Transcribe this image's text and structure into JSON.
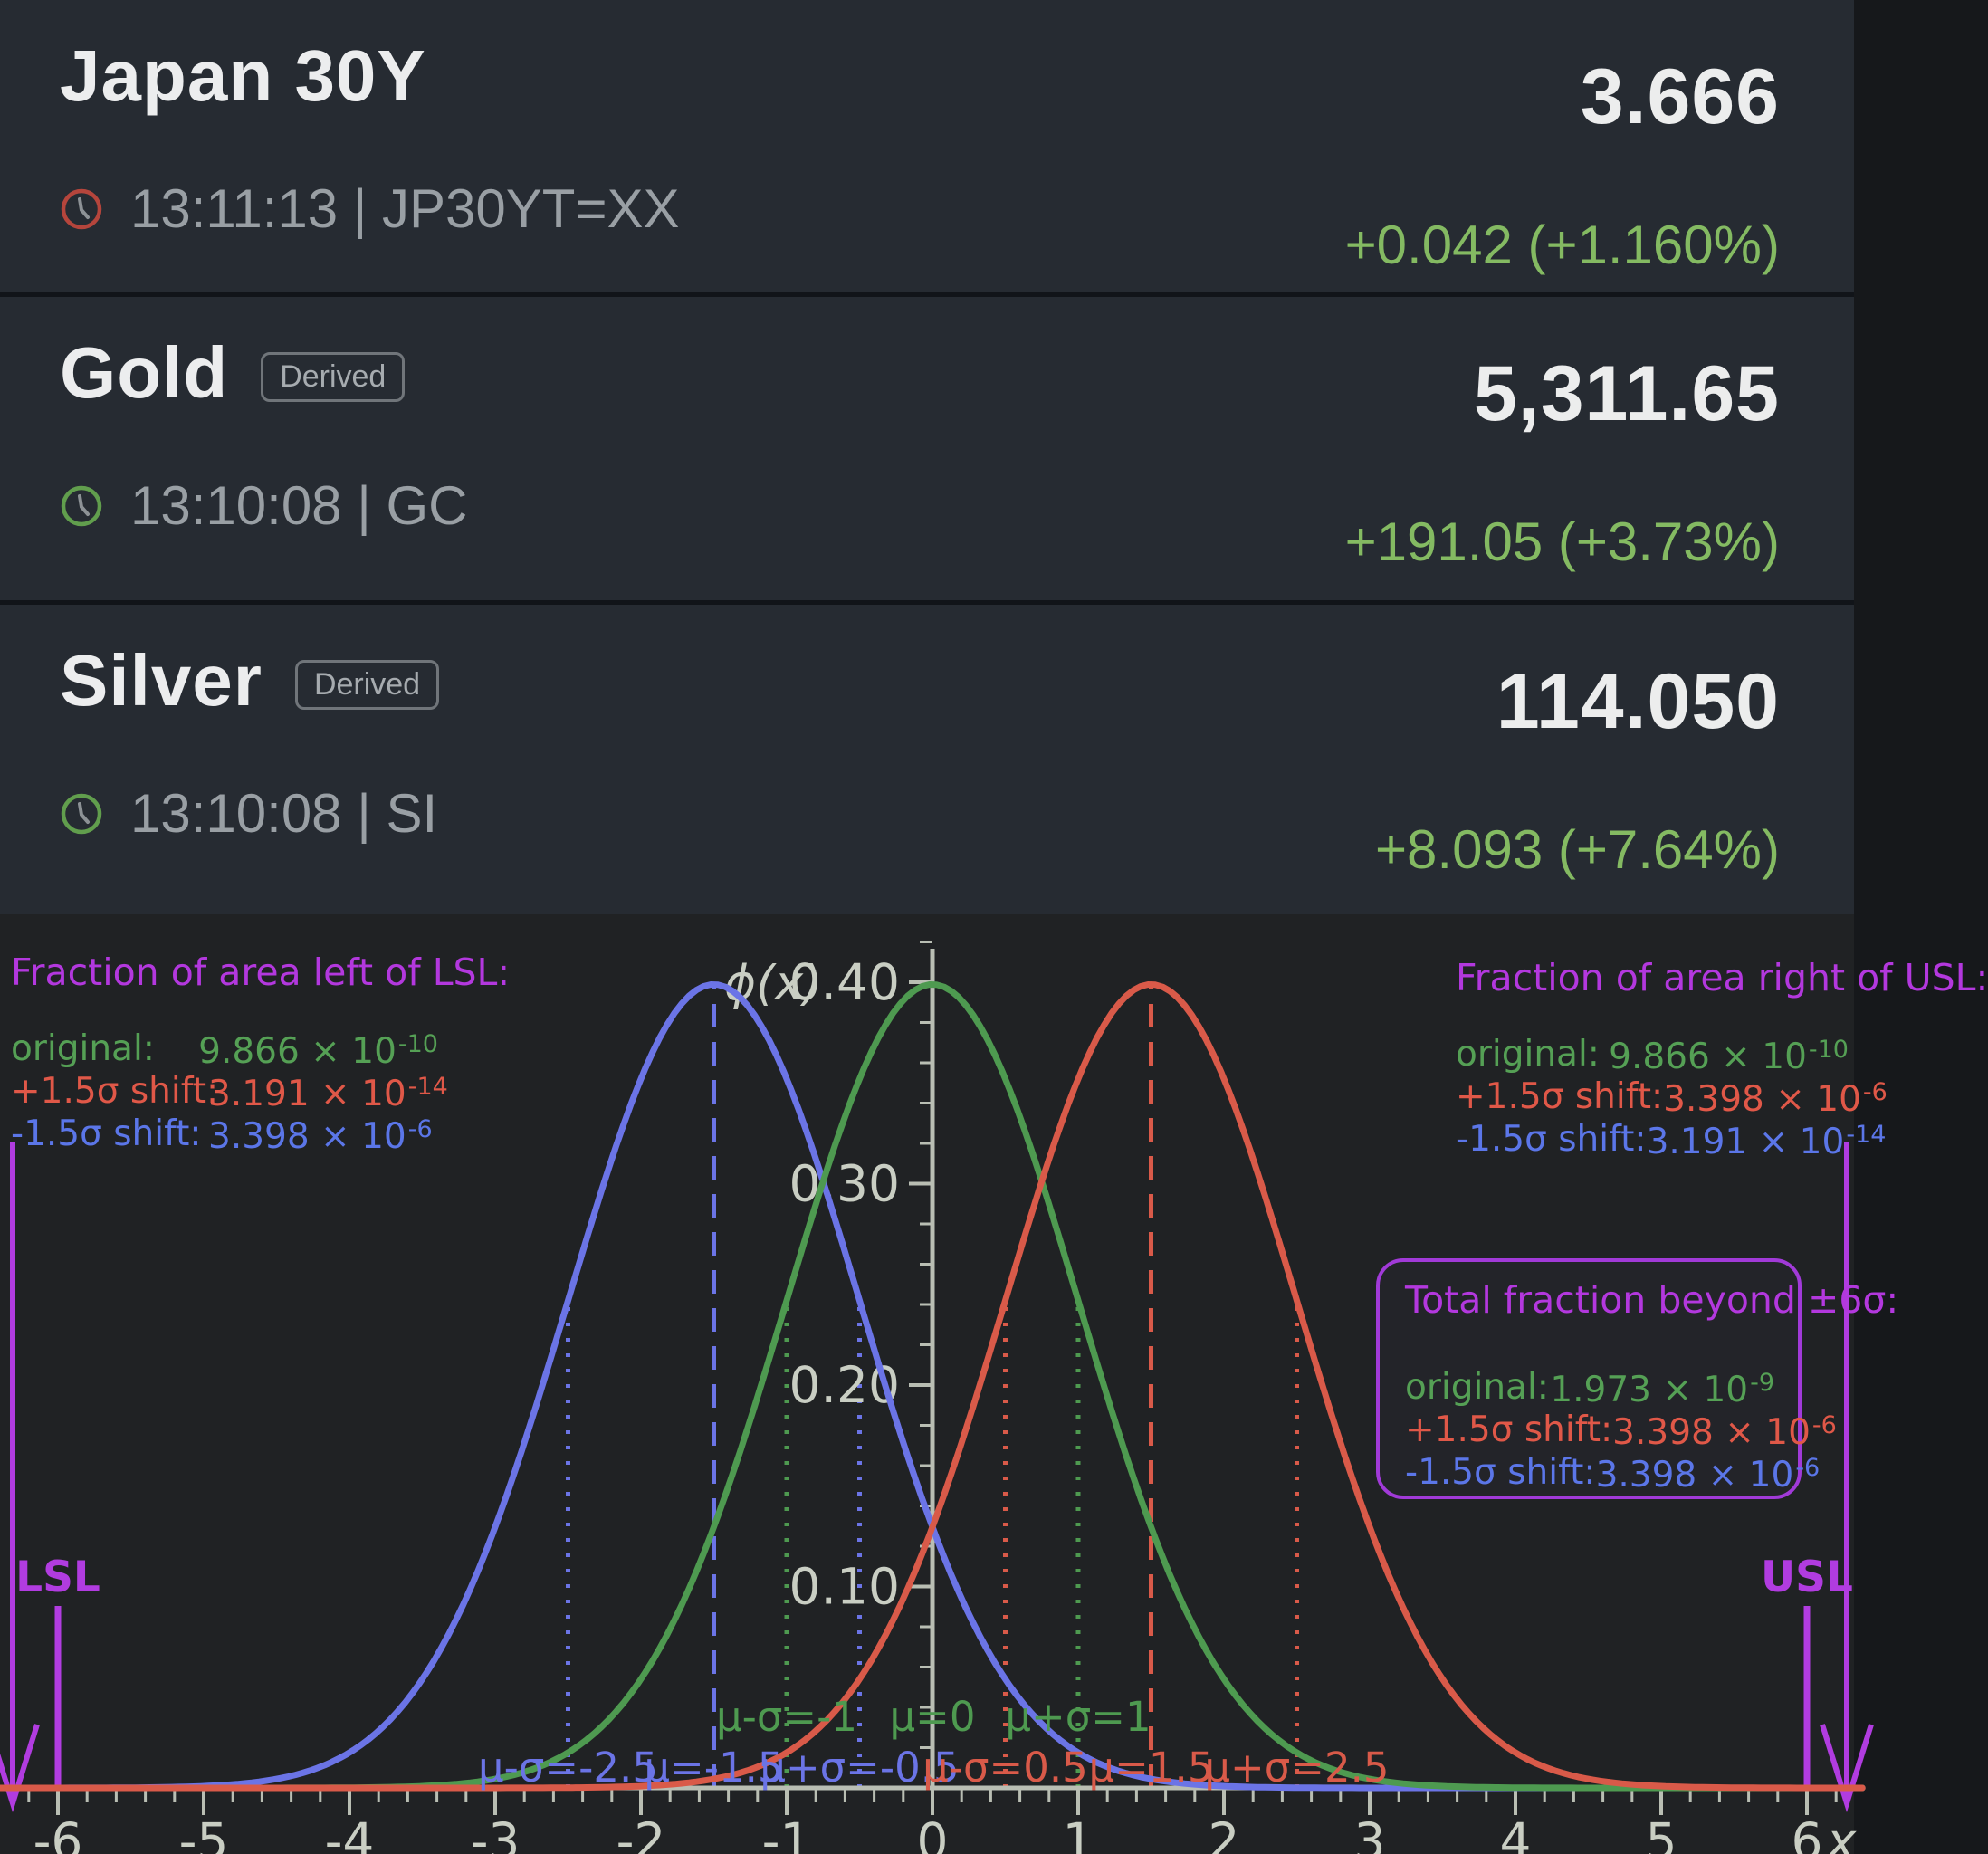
{
  "colors": {
    "purple": "#b338de",
    "green": "#55a055",
    "red": "#e05848",
    "blue": "#5b76e8",
    "axis": "#b9beb3",
    "tick_label": "#c9cec3",
    "change_green": "#84ba62",
    "panel_bg": "#262b32",
    "chart_bg": "#202224"
  },
  "quotes": {
    "rows": [
      {
        "name": "Japan 30Y",
        "badge": "",
        "time_line": "13:11:13 | JP30YT=XX",
        "price": "3.666",
        "change": "+0.042 (+1.160%)",
        "clock_color": "#b5453c"
      },
      {
        "name": "Gold",
        "badge": "Derived",
        "time_line": "13:10:08 | GC",
        "price": "5,311.65",
        "change": "+191.05 (+3.73%)",
        "clock_color": "#619e4d"
      },
      {
        "name": "Silver",
        "badge": "Derived",
        "time_line": "13:10:08 | SI",
        "price": "114.050",
        "change": "+8.093 (+7.64%)",
        "clock_color": "#619e4d"
      }
    ]
  },
  "chart": {
    "left_panel": {
      "title": "Fraction of area left of LSL:",
      "rows": [
        {
          "label": "original:",
          "value": "9.866 × 10",
          "exp": "-10",
          "color": "#55a055"
        },
        {
          "label": "+1.5σ shift:",
          "value": "3.191 × 10",
          "exp": "-14",
          "color": "#e05848"
        },
        {
          "label": "-1.5σ shift:",
          "value": "3.398 × 10",
          "exp": "-6",
          "color": "#5b76e8"
        }
      ]
    },
    "right_panel": {
      "title": "Fraction of area right of USL:",
      "rows": [
        {
          "label": "original:",
          "value": "9.866 × 10",
          "exp": "-10",
          "color": "#55a055"
        },
        {
          "label": "+1.5σ shift:",
          "value": "3.398 × 10",
          "exp": "-6",
          "color": "#e05848"
        },
        {
          "label": "-1.5σ shift:",
          "value": "3.191 × 10",
          "exp": "-14",
          "color": "#5b76e8"
        }
      ]
    },
    "total_box": {
      "title": "Total fraction beyond ±6σ:",
      "rows": [
        {
          "label": "original:",
          "value": "1.973 × 10",
          "exp": "-9",
          "color": "#55a055"
        },
        {
          "label": "+1.5σ shift:",
          "value": "3.398 × 10",
          "exp": "-6",
          "color": "#e05848"
        },
        {
          "label": "-1.5σ shift:",
          "value": "3.398 × 10",
          "exp": "-6",
          "color": "#5b76e8"
        }
      ]
    }
  },
  "chart_data": {
    "type": "line",
    "description": "Standard normal pdf curves: original (mean 0) and ±1.5 sigma shifted, with LSL/USL at ±6",
    "ylabel": "ϕ(x)",
    "xlabel": "x",
    "x_ticks": [
      -6,
      -5,
      -4,
      -3,
      -2,
      -1,
      0,
      1,
      2,
      3,
      4,
      5,
      6
    ],
    "x_minor_step": 0.2,
    "y_ticks": [
      0.1,
      0.2,
      0.3,
      0.4
    ],
    "y_tick_labels": [
      "0.10",
      "0.20",
      "0.30",
      "0.40"
    ],
    "y_minor_step": 0.02,
    "xlim": [
      -6.42,
      6.42
    ],
    "ylim": [
      0,
      0.435
    ],
    "sigma": 1,
    "series": [
      {
        "name": "-1.5σ shift",
        "mean": -1.5,
        "color": "#6b74e6",
        "mu_label": "μ=-1.5",
        "minus_label": "μ-σ=-2.5",
        "plus_label": "μ+σ=-0.5",
        "label_row": "lower"
      },
      {
        "name": "original",
        "mean": 0,
        "color": "#4e9a50",
        "mu_label": "μ=0",
        "minus_label": "μ-σ=-1",
        "plus_label": "μ+σ=1",
        "label_row": "upper"
      },
      {
        "name": "+1.5σ shift",
        "mean": 1.5,
        "color": "#d95a49",
        "mu_label": "μ=1.5",
        "minus_label": "μ-σ=0.5",
        "plus_label": "μ+σ=2.5",
        "label_row": "lower"
      }
    ],
    "limits": {
      "lsl": {
        "x": -6,
        "label": "LSL"
      },
      "usl": {
        "x": 6,
        "label": "USL"
      },
      "color": "#b13ce0"
    }
  }
}
